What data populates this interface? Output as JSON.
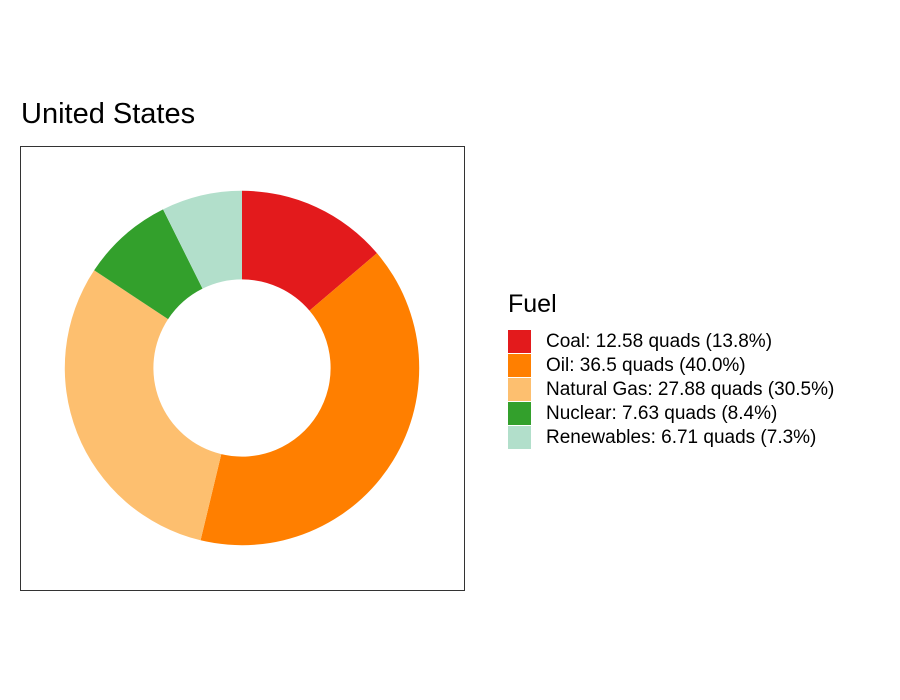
{
  "chart_data": {
    "type": "pie",
    "variant": "donut",
    "title": "United States",
    "legend_title": "Fuel",
    "legend_position": "right",
    "unit": "quads",
    "categories": [
      "Coal",
      "Oil",
      "Natural Gas",
      "Nuclear",
      "Renewables"
    ],
    "values": [
      12.58,
      36.5,
      27.88,
      7.63,
      6.71
    ],
    "percentages": [
      "13.8%",
      "40.0%",
      "30.5%",
      "8.4%",
      "7.3%"
    ],
    "labels": [
      "Coal: 12.58 quads (13.8%)",
      "Oil: 36.5 quads (40.0%)",
      "Natural Gas: 27.88 quads (30.5%)",
      "Nuclear: 7.63 quads (8.4%)",
      "Renewables: 6.71 quads (7.3%)"
    ],
    "colors": [
      "#e31a1c",
      "#ff7f00",
      "#fdbf6f",
      "#33a02c",
      "#b2dfcb"
    ],
    "start": "12 o'clock",
    "direction": "clockwise"
  }
}
